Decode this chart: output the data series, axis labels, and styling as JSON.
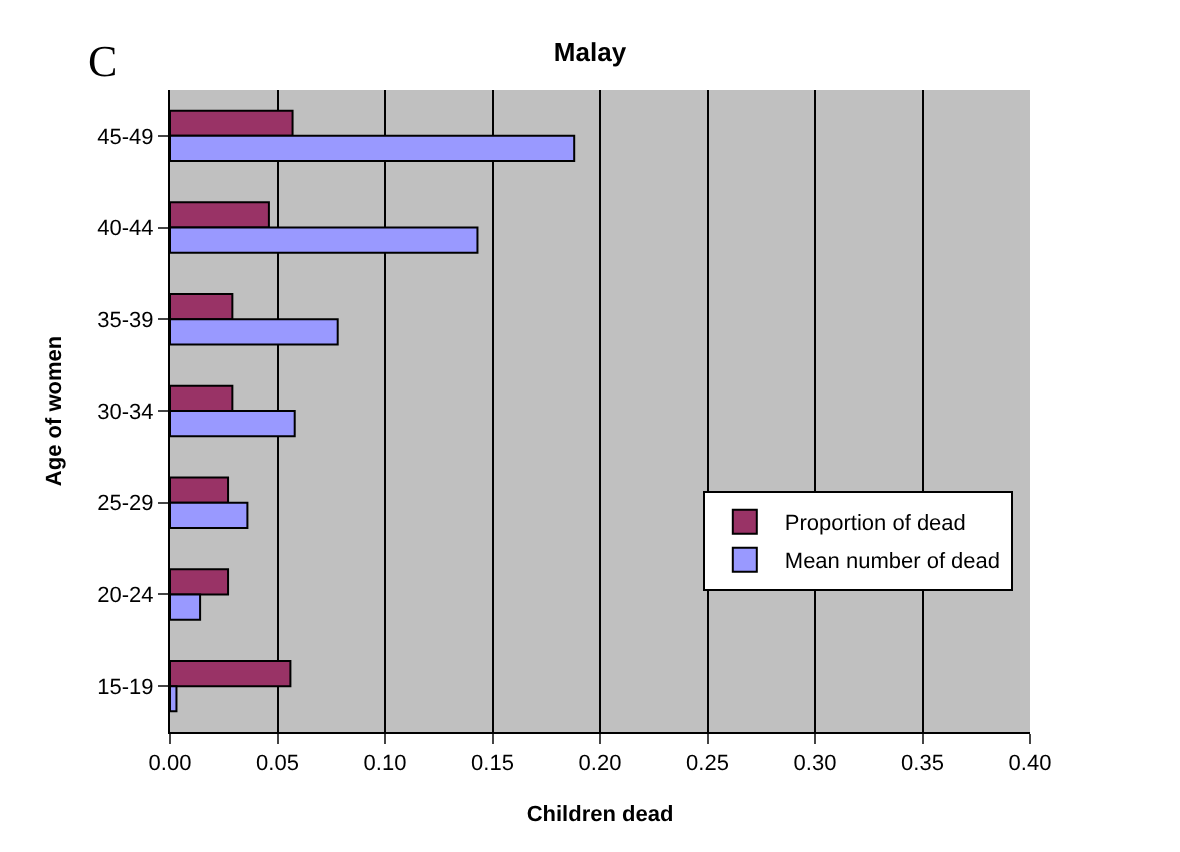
{
  "chart_data": {
    "type": "bar",
    "orientation": "horizontal",
    "title": "Malay",
    "xlabel": "Children dead",
    "ylabel": "Age of women",
    "annotations": [
      "C"
    ],
    "categories": [
      "45-49",
      "40-44",
      "35-39",
      "30-34",
      "25-29",
      "20-24",
      "15-19"
    ],
    "series": [
      {
        "name": "Proportion of dead",
        "color": "#993366",
        "values": [
          0.057,
          0.046,
          0.029,
          0.029,
          0.027,
          0.027,
          0.056
        ]
      },
      {
        "name": "Mean number of dead",
        "color": "#9999ff",
        "values": [
          0.188,
          0.143,
          0.078,
          0.058,
          0.036,
          0.014,
          0.003
        ]
      }
    ],
    "xlim": [
      0,
      0.4
    ],
    "xticks": [
      {
        "value": 0,
        "label": "0.00"
      },
      {
        "value": 0.05,
        "label": "0.05"
      },
      {
        "value": 0.1,
        "label": "0.10"
      },
      {
        "value": 0.15,
        "label": "0.15"
      },
      {
        "value": 0.2,
        "label": "0.20"
      },
      {
        "value": 0.25,
        "label": "0.25"
      },
      {
        "value": 0.3,
        "label": "0.30"
      },
      {
        "value": 0.35,
        "label": "0.35"
      },
      {
        "value": 0.4,
        "label": "0.40"
      }
    ],
    "grid": "x",
    "legend": "bottom right"
  }
}
